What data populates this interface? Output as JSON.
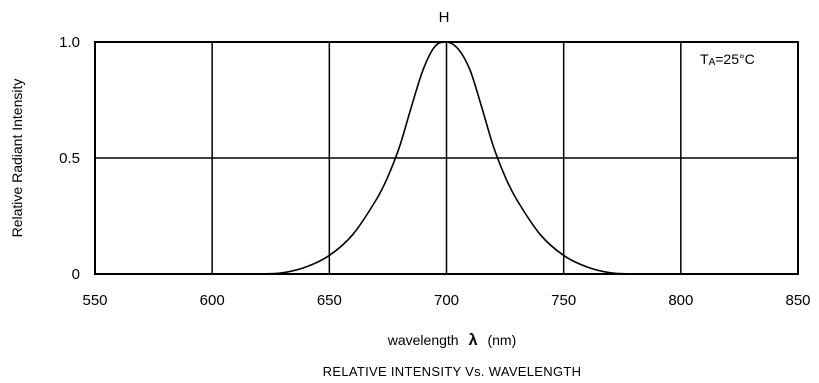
{
  "chart_data": {
    "type": "line",
    "title": "H",
    "xlabel_text": "wavelength",
    "xlabel_symbol": "λ",
    "xlabel_unit": "(nm)",
    "ylabel": "Relative Radiant Intensity",
    "caption": "RELATIVE INTENSITY Vs. WAVELENGTH",
    "annotation": {
      "main": "T",
      "sub": "A",
      "rest": "=25°C"
    },
    "xlim": [
      550,
      850
    ],
    "ylim": [
      0,
      1.0
    ],
    "x_ticks": [
      550,
      600,
      650,
      700,
      750,
      800,
      850
    ],
    "x_tick_labels": [
      "550",
      "600",
      "650",
      "700",
      "750",
      "800",
      "850"
    ],
    "y_ticks": [
      0,
      0.5,
      1.0
    ],
    "y_tick_labels": [
      "0",
      "0.5",
      "1.0"
    ],
    "grid": true,
    "series": [
      {
        "x": [
          620,
          630,
          640,
          650,
          660,
          670,
          675,
          680,
          685,
          690,
          695,
          700,
          705,
          710,
          715,
          720,
          725,
          730,
          740,
          750,
          760,
          770,
          780
        ],
        "values": [
          0.0,
          0.005,
          0.03,
          0.08,
          0.17,
          0.32,
          0.42,
          0.55,
          0.72,
          0.88,
          0.98,
          1.0,
          0.97,
          0.88,
          0.72,
          0.55,
          0.42,
          0.32,
          0.17,
          0.08,
          0.03,
          0.005,
          0.0
        ]
      }
    ]
  }
}
